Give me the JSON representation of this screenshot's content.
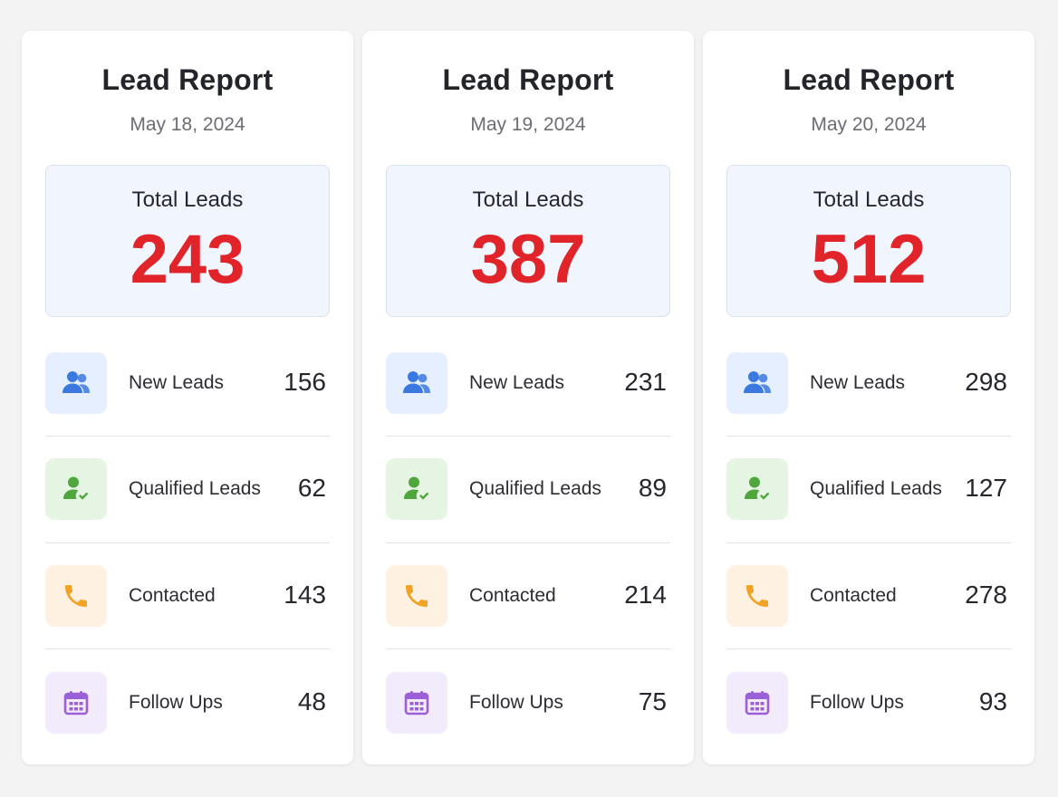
{
  "colors": {
    "accent_red": "#e0242a",
    "icon_blue": "#3b78e0",
    "icon_green": "#4ea63c",
    "icon_orange": "#f3a323",
    "icon_purple": "#9b5fd6"
  },
  "cards": [
    {
      "title": "Lead Report",
      "date": "May 18, 2024",
      "total_label": "Total Leads",
      "total_value": "243",
      "metrics": [
        {
          "label": "New Leads",
          "value": "156",
          "icon": "users-icon"
        },
        {
          "label": "Qualified Leads",
          "value": "62",
          "icon": "user-check-icon"
        },
        {
          "label": "Contacted",
          "value": "143",
          "icon": "phone-icon"
        },
        {
          "label": "Follow Ups",
          "value": "48",
          "icon": "calendar-icon"
        }
      ]
    },
    {
      "title": "Lead Report",
      "date": "May 19, 2024",
      "total_label": "Total Leads",
      "total_value": "387",
      "metrics": [
        {
          "label": "New Leads",
          "value": "231",
          "icon": "users-icon"
        },
        {
          "label": "Qualified Leads",
          "value": "89",
          "icon": "user-check-icon"
        },
        {
          "label": "Contacted",
          "value": "214",
          "icon": "phone-icon"
        },
        {
          "label": "Follow Ups",
          "value": "75",
          "icon": "calendar-icon"
        }
      ]
    },
    {
      "title": "Lead Report",
      "date": "May 20, 2024",
      "total_label": "Total Leads",
      "total_value": "512",
      "metrics": [
        {
          "label": "New Leads",
          "value": "298",
          "icon": "users-icon"
        },
        {
          "label": "Qualified Leads",
          "value": "127",
          "icon": "user-check-icon"
        },
        {
          "label": "Contacted",
          "value": "278",
          "icon": "phone-icon"
        },
        {
          "label": "Follow Ups",
          "value": "93",
          "icon": "calendar-icon"
        }
      ]
    }
  ]
}
